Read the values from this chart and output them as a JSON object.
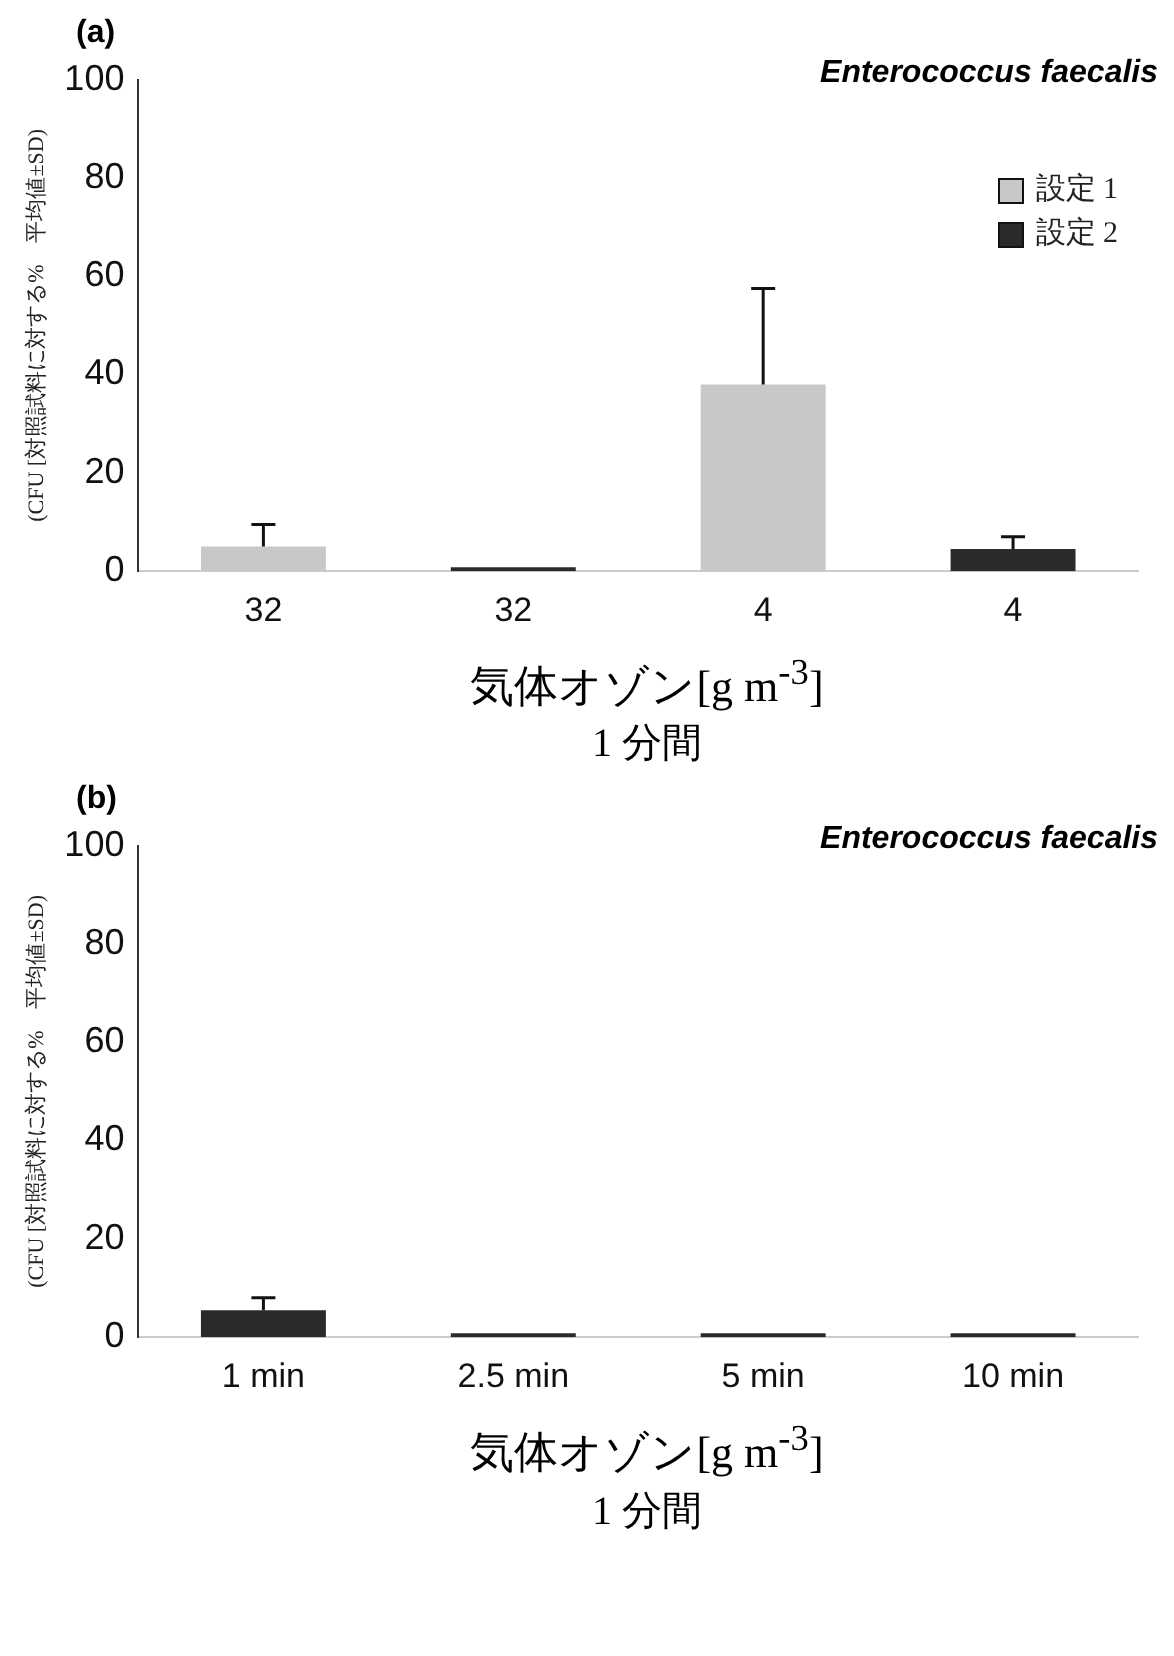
{
  "chart_data": [
    {
      "type": "bar",
      "title": "(a)",
      "ylabel": "(CFU [対照試料に対する%　平均値±SD)",
      "xlabel": "気体オゾン[g m$^{-3}$]",
      "annotations": [
        "Enterococcus faecalis",
        "1 分間"
      ],
      "categories": [
        "32",
        "32",
        "4",
        "4"
      ],
      "series": [
        {
          "name": "設定 1",
          "color": "#c8c8c8",
          "values": [
            5,
            null,
            38,
            null
          ],
          "errors": [
            4.5,
            null,
            19.5,
            null
          ]
        },
        {
          "name": "設定 2",
          "color": "#2a2a2a",
          "values": [
            null,
            0.8,
            null,
            4.5
          ],
          "errors": [
            null,
            null,
            null,
            2.5
          ]
        }
      ],
      "ylim": [
        0,
        100
      ],
      "yticks": [
        0,
        20,
        40,
        60,
        80,
        100
      ],
      "legend": "top right",
      "grid": false
    },
    {
      "type": "bar",
      "title": "(b)",
      "ylabel": "(CFU [対照試料に対する%　平均値±SD)",
      "xlabel": "気体オゾン[g m$^{-3}$]",
      "annotations": [
        "Enterococcus faecalis",
        "1 分間"
      ],
      "categories": [
        "1 min",
        "2.5 min",
        "5 min",
        "10 min"
      ],
      "series": [
        {
          "color": "#2a2a2a",
          "values": [
            5.5,
            0.8,
            0.8,
            0.8
          ],
          "errors": [
            2.5,
            null,
            null,
            null
          ]
        }
      ],
      "ylim": [
        0,
        100
      ],
      "yticks": [
        0,
        20,
        40,
        60,
        80,
        100
      ],
      "grid": false
    }
  ]
}
